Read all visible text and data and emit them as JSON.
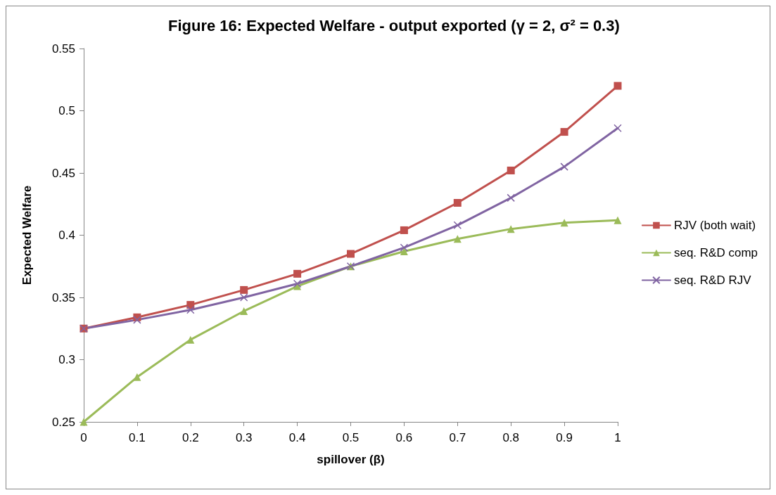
{
  "chart_data": {
    "type": "line",
    "title": "Figure 16: Expected Welfare - output exported (γ = 2, σ² = 0.3)",
    "xlabel": "spillover (β)",
    "ylabel": "Expected Welfare",
    "x": [
      0,
      0.1,
      0.2,
      0.3,
      0.4,
      0.5,
      0.6,
      0.7,
      0.8,
      0.9,
      1
    ],
    "series": [
      {
        "name": "RJV (both wait)",
        "color": "#c0504d",
        "marker": "square",
        "values": [
          0.325,
          0.334,
          0.344,
          0.356,
          0.369,
          0.385,
          0.404,
          0.426,
          0.452,
          0.483,
          0.52
        ]
      },
      {
        "name": "seq. R&D comp",
        "color": "#9bbb59",
        "marker": "triangle",
        "values": [
          0.25,
          0.286,
          0.316,
          0.339,
          0.359,
          0.375,
          0.387,
          0.397,
          0.405,
          0.41,
          0.412
        ]
      },
      {
        "name": "seq. R&D RJV",
        "color": "#8064a2",
        "marker": "cross",
        "values": [
          0.325,
          0.332,
          0.34,
          0.35,
          0.361,
          0.375,
          0.39,
          0.408,
          0.43,
          0.455,
          0.486
        ]
      }
    ],
    "xlim": [
      0,
      1
    ],
    "xticks": [
      0,
      0.1,
      0.2,
      0.3,
      0.4,
      0.5,
      0.6,
      0.7,
      0.8,
      0.9,
      1
    ],
    "ylim": [
      0.25,
      0.55
    ],
    "yticks": [
      0.25,
      0.3,
      0.35,
      0.4,
      0.45,
      0.5,
      0.55
    ],
    "grid": false,
    "legend": "right"
  }
}
